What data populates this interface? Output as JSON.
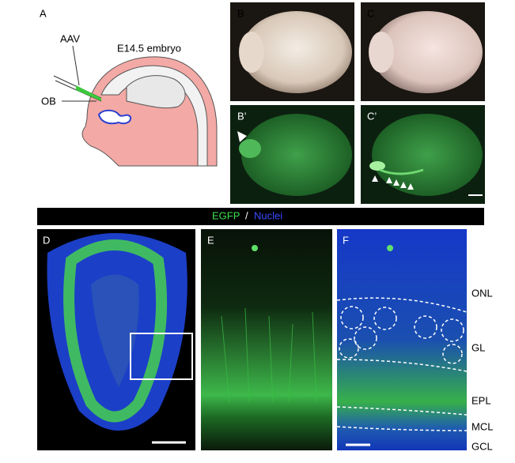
{
  "panel_labels": {
    "a": "A",
    "b": "B",
    "c": "C",
    "b_prime": "B’",
    "c_prime": "C’",
    "d": "D",
    "e": "E",
    "f": "F"
  },
  "schematic": {
    "vector": "AAV",
    "stage": "E14.5 embryo",
    "region": "OB"
  },
  "banner": {
    "green": "EGFP",
    "separator": "/",
    "blue": "Nuclei"
  },
  "layers": [
    "ONL",
    "GL",
    "EPL",
    "MCL",
    "GCL"
  ]
}
